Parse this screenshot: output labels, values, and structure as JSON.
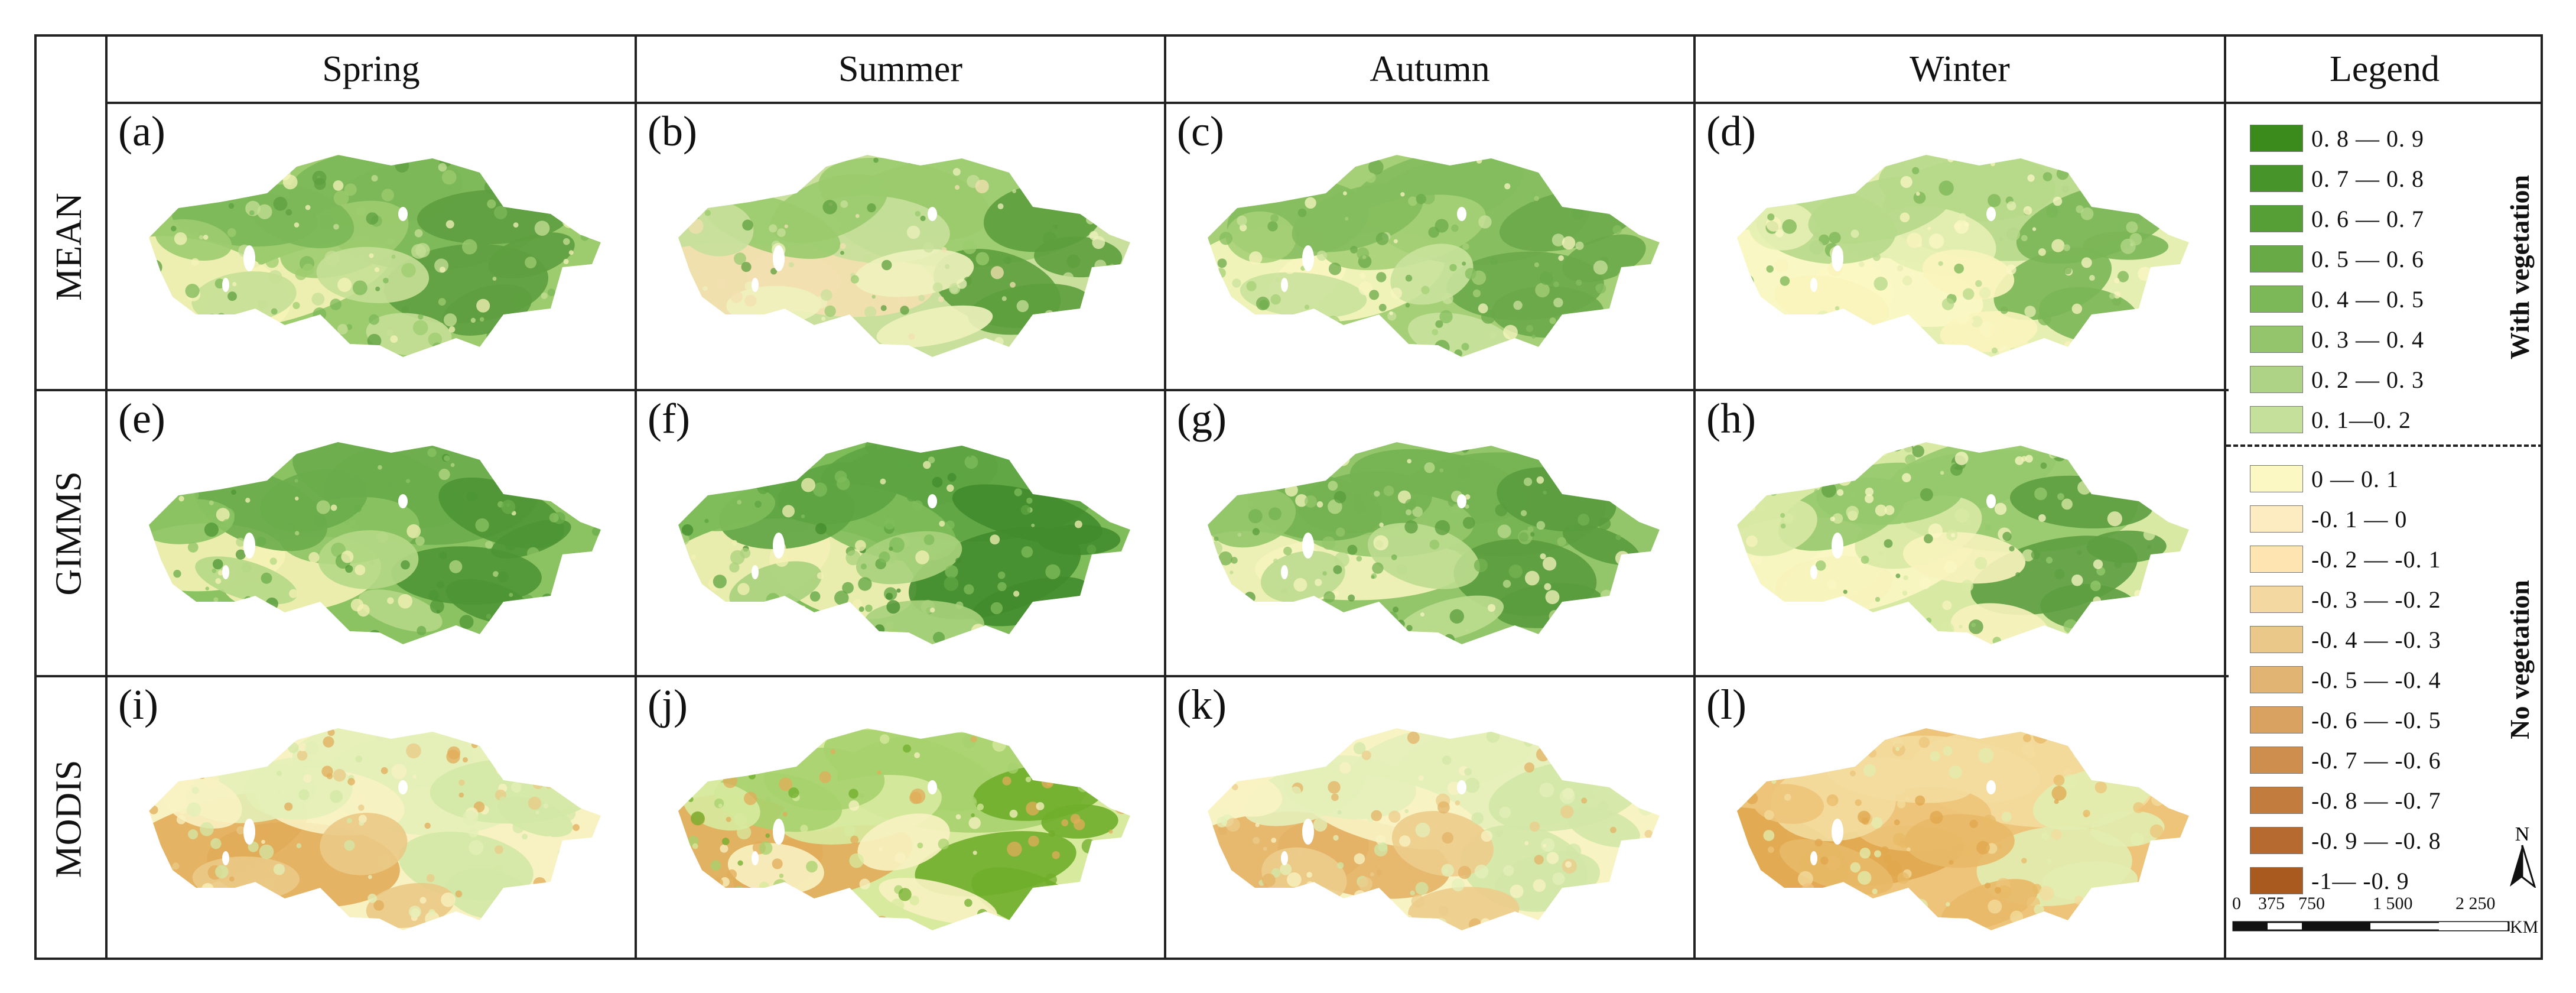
{
  "columns": [
    "Spring",
    "Summer",
    "Autumn",
    "Winter",
    "Legend"
  ],
  "rows": [
    "MEAN",
    "GIMMS",
    "MODIS"
  ],
  "panels": [
    {
      "label": "(a)",
      "palette": [
        "#f6f3b8",
        "#c5df96",
        "#9dcc6f",
        "#7cb858",
        "#5e9f40"
      ]
    },
    {
      "label": "(b)",
      "palette": [
        "#f3e0b0",
        "#eef2bc",
        "#c8e09b",
        "#9acb6d",
        "#5d9f3d"
      ]
    },
    {
      "label": "(c)",
      "palette": [
        "#f8f6bf",
        "#c9e29c",
        "#a6d077",
        "#84bd5d",
        "#6aa94a"
      ]
    },
    {
      "label": "(d)",
      "palette": [
        "#fbf7c4",
        "#f9f4bd",
        "#e6efb2",
        "#b6d889",
        "#7bb656"
      ]
    },
    {
      "label": "(e)",
      "palette": [
        "#f5f2b5",
        "#b5d886",
        "#8bc363",
        "#6aac4b",
        "#4e9535"
      ]
    },
    {
      "label": "(f)",
      "palette": [
        "#f4f1b6",
        "#a9d27c",
        "#7fbc5a",
        "#5ea442",
        "#438c2e"
      ]
    },
    {
      "label": "(g)",
      "palette": [
        "#f6f4bc",
        "#bcdc8f",
        "#93c66a",
        "#74b152",
        "#5a9c3e"
      ]
    },
    {
      "label": "(h)",
      "palette": [
        "#fbf7c4",
        "#f7f3bc",
        "#d8e9a4",
        "#96c96d",
        "#5d9f41"
      ]
    },
    {
      "label": "(i)",
      "palette": [
        "#e1ac5a",
        "#eac985",
        "#f8f2c2",
        "#e3efb7",
        "#d3e8a6"
      ]
    },
    {
      "label": "(j)",
      "palette": [
        "#e1ac5a",
        "#f8f2c2",
        "#d7ea9e",
        "#a7d26e",
        "#6fae2b"
      ]
    },
    {
      "label": "(k)",
      "palette": [
        "#e3b366",
        "#eccc8b",
        "#f8f3c3",
        "#e4f0b9",
        "#d2e7a7"
      ]
    },
    {
      "label": "(l)",
      "palette": [
        "#e0a74e",
        "#e8b967",
        "#edc47a",
        "#f3dc9d",
        "#e1edaf"
      ]
    }
  ],
  "legend": {
    "vegetation_label": "With vegetation",
    "no_vegetation_label": "No vegetation",
    "items": [
      {
        "label": "0. 8 — 0. 9",
        "color": "#3a8a1c"
      },
      {
        "label": "0. 7 — 0. 8",
        "color": "#46942a"
      },
      {
        "label": "0. 6 — 0. 7",
        "color": "#569f36"
      },
      {
        "label": "0. 5 — 0. 6",
        "color": "#68aa46"
      },
      {
        "label": "0. 4 — 0. 5",
        "color": "#7cb758"
      },
      {
        "label": "0. 3 — 0. 4",
        "color": "#94c56d"
      },
      {
        "label": "0. 2 — 0. 3",
        "color": "#aed386"
      },
      {
        "label": "0. 1—0. 2",
        "color": "#c5e09b"
      },
      {
        "label": "0 — 0. 1",
        "color": "#fbf8c3"
      },
      {
        "label": "-0. 1 — 0",
        "color": "#fdebc2"
      },
      {
        "label": "-0. 2 — -0. 1",
        "color": "#fde4b0"
      },
      {
        "label": "-0. 3 — -0. 2",
        "color": "#f3d9a1"
      },
      {
        "label": "-0. 4 — -0. 3",
        "color": "#eac88a"
      },
      {
        "label": "-0. 5 — -0. 4",
        "color": "#e2b474"
      },
      {
        "label": "-0. 6 — -0. 5",
        "color": "#d9a260"
      },
      {
        "label": "-0. 7 — -0. 6",
        "color": "#ce8f4e"
      },
      {
        "label": "-0. 8 — -0. 7",
        "color": "#c27c3e"
      },
      {
        "label": "-0. 9 — -0. 8",
        "color": "#b76a2f"
      },
      {
        "label": "-1— -0. 9",
        "color": "#a85a1f"
      }
    ],
    "north_label": "N",
    "scale": {
      "ticks": [
        "0",
        "375",
        "750",
        "1 500",
        "2 250"
      ],
      "unit": "KM"
    }
  }
}
